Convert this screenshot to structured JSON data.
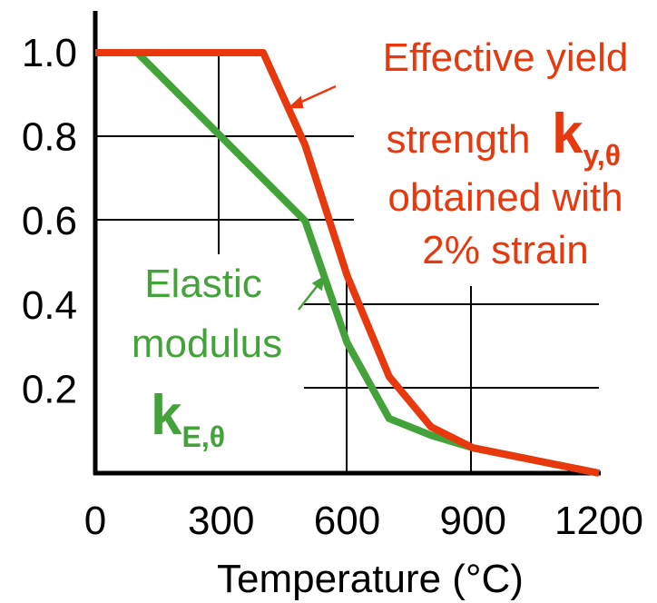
{
  "chart_data": {
    "type": "line",
    "xlabel": "Temperature (°C)",
    "ylabel": "",
    "xlim": [
      0,
      1200
    ],
    "ylim": [
      0,
      1.0
    ],
    "x_ticks": [
      "0",
      "300",
      "600",
      "900",
      "1200"
    ],
    "y_ticks": [
      "1.0",
      "0.8",
      "0.6",
      "0.4",
      "0.2"
    ],
    "grid": "partial",
    "series": [
      {
        "name": "Effective yield strength k_y,θ obtained with 2% strain",
        "color": "#e8380d",
        "x": [
          0,
          400,
          500,
          600,
          700,
          800,
          900,
          1000,
          1100,
          1200
        ],
        "y": [
          1.0,
          1.0,
          0.78,
          0.47,
          0.23,
          0.11,
          0.06,
          0.04,
          0.02,
          0.0
        ]
      },
      {
        "name": "Elastic modulus k_E,θ",
        "color": "#44a23a",
        "x": [
          0,
          100,
          300,
          500,
          600,
          700,
          800,
          900,
          1000,
          1100,
          1200
        ],
        "y": [
          1.0,
          1.0,
          0.8,
          0.6,
          0.31,
          0.13,
          0.09,
          0.06,
          0.04,
          0.02,
          0.0
        ]
      }
    ],
    "annotations": {
      "red": {
        "lines": [
          "Effective yield",
          "strength",
          "obtained with",
          "2% strain"
        ],
        "symbol": "k",
        "subscript": "y,θ"
      },
      "green": {
        "lines": [
          "Elastic",
          "modulus"
        ],
        "symbol": "k",
        "subscript": "E,θ"
      }
    }
  }
}
